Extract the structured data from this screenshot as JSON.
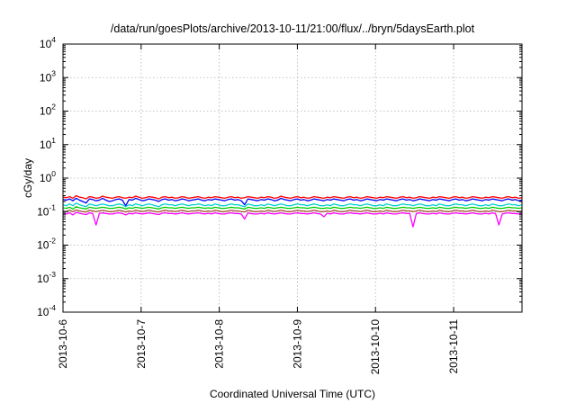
{
  "chart_data": {
    "type": "line",
    "title": "/data/run/goesPlots/archive/2013-10-11/21:00/flux/../bryn/5daysEarth.plot",
    "xlabel": "Coordinated Universal Time (UTC)",
    "ylabel": "cGy/day",
    "yscale": "log",
    "ylim": [
      0.0001,
      10000
    ],
    "y_ticks": [
      {
        "base": "10",
        "exp": "-4"
      },
      {
        "base": "10",
        "exp": "-3"
      },
      {
        "base": "10",
        "exp": "-2"
      },
      {
        "base": "10",
        "exp": "-1"
      },
      {
        "base": "10",
        "exp": "0"
      },
      {
        "base": "10",
        "exp": "1"
      },
      {
        "base": "10",
        "exp": "2"
      },
      {
        "base": "10",
        "exp": "3"
      },
      {
        "base": "10",
        "exp": "4"
      }
    ],
    "xlim": [
      "2013-10-06",
      "2013-10-11T21:00"
    ],
    "x_ticks": [
      "2013-10-6",
      "2013-10-7",
      "2013-10-8",
      "2013-10-9",
      "2013-10-10",
      "2013-10-11"
    ],
    "grid": true,
    "series": [
      {
        "color": "#ff0000",
        "base": 0.26,
        "values": [
          0.27,
          0.26,
          0.28,
          0.25,
          0.3,
          0.27,
          0.26,
          0.24,
          0.28,
          0.27,
          0.25,
          0.26,
          0.29,
          0.27,
          0.26,
          0.25,
          0.27,
          0.28,
          0.26,
          0.25,
          0.27,
          0.26,
          0.29,
          0.27,
          0.25,
          0.26,
          0.28,
          0.27,
          0.26,
          0.24,
          0.27,
          0.28,
          0.26,
          0.27,
          0.25,
          0.26,
          0.28,
          0.27,
          0.25,
          0.26,
          0.27,
          0.28,
          0.26,
          0.25,
          0.27,
          0.26,
          0.28,
          0.27,
          0.26,
          0.25,
          0.27,
          0.28,
          0.26,
          0.27,
          0.25,
          0.26,
          0.28,
          0.27,
          0.26,
          0.25,
          0.27,
          0.26,
          0.28,
          0.27,
          0.25,
          0.26,
          0.29,
          0.27,
          0.26,
          0.25,
          0.27,
          0.28,
          0.26,
          0.27,
          0.25,
          0.26,
          0.28,
          0.27,
          0.26,
          0.25,
          0.27,
          0.26,
          0.28,
          0.27,
          0.26,
          0.25,
          0.27,
          0.28,
          0.26,
          0.27,
          0.25,
          0.26,
          0.28,
          0.27,
          0.26,
          0.25,
          0.27,
          0.26,
          0.28,
          0.27,
          0.26,
          0.25,
          0.27,
          0.28,
          0.26,
          0.27,
          0.25,
          0.26,
          0.28,
          0.27,
          0.26,
          0.25,
          0.27,
          0.26,
          0.28,
          0.27,
          0.26,
          0.25,
          0.27,
          0.28,
          0.26,
          0.27,
          0.25,
          0.26,
          0.28,
          0.27,
          0.26,
          0.25,
          0.27,
          0.26,
          0.28,
          0.27,
          0.26,
          0.25,
          0.27,
          0.28,
          0.26,
          0.27,
          0.25,
          0.26
        ]
      },
      {
        "color": "#0000ff",
        "base": 0.22,
        "values": [
          0.23,
          0.22,
          0.24,
          0.21,
          0.25,
          0.22,
          0.2,
          0.18,
          0.24,
          0.23,
          0.21,
          0.22,
          0.25,
          0.22,
          0.2,
          0.21,
          0.23,
          0.24,
          0.22,
          0.15,
          0.23,
          0.22,
          0.25,
          0.23,
          0.21,
          0.22,
          0.24,
          0.23,
          0.22,
          0.2,
          0.23,
          0.24,
          0.22,
          0.23,
          0.21,
          0.22,
          0.24,
          0.23,
          0.21,
          0.22,
          0.23,
          0.24,
          0.22,
          0.21,
          0.23,
          0.22,
          0.24,
          0.23,
          0.22,
          0.21,
          0.23,
          0.24,
          0.22,
          0.23,
          0.21,
          0.16,
          0.24,
          0.23,
          0.22,
          0.21,
          0.23,
          0.22,
          0.24,
          0.23,
          0.21,
          0.22,
          0.25,
          0.23,
          0.22,
          0.21,
          0.23,
          0.24,
          0.22,
          0.23,
          0.21,
          0.22,
          0.24,
          0.23,
          0.22,
          0.21,
          0.23,
          0.22,
          0.24,
          0.23,
          0.22,
          0.21,
          0.23,
          0.24,
          0.22,
          0.23,
          0.21,
          0.22,
          0.24,
          0.23,
          0.22,
          0.21,
          0.23,
          0.22,
          0.24,
          0.23,
          0.22,
          0.21,
          0.23,
          0.24,
          0.22,
          0.23,
          0.21,
          0.22,
          0.24,
          0.23,
          0.22,
          0.21,
          0.23,
          0.22,
          0.24,
          0.23,
          0.22,
          0.21,
          0.23,
          0.24,
          0.22,
          0.23,
          0.21,
          0.22,
          0.24,
          0.23,
          0.22,
          0.21,
          0.23,
          0.22,
          0.24,
          0.23,
          0.22,
          0.21,
          0.23,
          0.24,
          0.22,
          0.23,
          0.21,
          0.22
        ]
      },
      {
        "color": "#00d0d0",
        "base": 0.16,
        "values": [
          0.16,
          0.15,
          0.17,
          0.15,
          0.18,
          0.16,
          0.15,
          0.14,
          0.17,
          0.16,
          0.15,
          0.16,
          0.17,
          0.16,
          0.15,
          0.15,
          0.16,
          0.17,
          0.16,
          0.14,
          0.16,
          0.15,
          0.17,
          0.16,
          0.15,
          0.16,
          0.17,
          0.16,
          0.15,
          0.14,
          0.16,
          0.17,
          0.16,
          0.16,
          0.15,
          0.16,
          0.17,
          0.16,
          0.15,
          0.16,
          0.16,
          0.17,
          0.16,
          0.15,
          0.16,
          0.15,
          0.17,
          0.16,
          0.15,
          0.15,
          0.16,
          0.17,
          0.16,
          0.16,
          0.15,
          0.14,
          0.17,
          0.16,
          0.15,
          0.15,
          0.16,
          0.15,
          0.17,
          0.16,
          0.15,
          0.16,
          0.17,
          0.16,
          0.15,
          0.15,
          0.16,
          0.17,
          0.16,
          0.16,
          0.15,
          0.16,
          0.17,
          0.16,
          0.15,
          0.15,
          0.16,
          0.15,
          0.17,
          0.16,
          0.15,
          0.15,
          0.16,
          0.17,
          0.16,
          0.16,
          0.15,
          0.16,
          0.17,
          0.16,
          0.15,
          0.15,
          0.16,
          0.15,
          0.17,
          0.16,
          0.15,
          0.15,
          0.16,
          0.17,
          0.16,
          0.16,
          0.15,
          0.16,
          0.17,
          0.16,
          0.15,
          0.15,
          0.16,
          0.15,
          0.17,
          0.16,
          0.15,
          0.15,
          0.16,
          0.17,
          0.16,
          0.16,
          0.15,
          0.16,
          0.17,
          0.16,
          0.15,
          0.15,
          0.16,
          0.15,
          0.17,
          0.16,
          0.15,
          0.15,
          0.16,
          0.17,
          0.16,
          0.16,
          0.15,
          0.16
        ]
      },
      {
        "color": "#00cc00",
        "base": 0.13,
        "values": [
          0.13,
          0.125,
          0.135,
          0.12,
          0.14,
          0.13,
          0.125,
          0.12,
          0.135,
          0.13,
          0.125,
          0.13,
          0.135,
          0.13,
          0.125,
          0.125,
          0.13,
          0.135,
          0.13,
          0.12,
          0.13,
          0.125,
          0.135,
          0.13,
          0.125,
          0.13,
          0.135,
          0.13,
          0.125,
          0.12,
          0.13,
          0.135,
          0.13,
          0.13,
          0.125,
          0.13,
          0.135,
          0.13,
          0.125,
          0.13,
          0.13,
          0.135,
          0.13,
          0.125,
          0.13,
          0.125,
          0.135,
          0.13,
          0.125,
          0.125,
          0.13,
          0.135,
          0.13,
          0.13,
          0.125,
          0.12,
          0.135,
          0.13,
          0.125,
          0.125,
          0.13,
          0.125,
          0.135,
          0.13,
          0.125,
          0.13,
          0.135,
          0.13,
          0.125,
          0.125,
          0.13,
          0.135,
          0.13,
          0.13,
          0.125,
          0.13,
          0.135,
          0.13,
          0.125,
          0.125,
          0.13,
          0.125,
          0.135,
          0.13,
          0.125,
          0.125,
          0.13,
          0.135,
          0.13,
          0.13,
          0.125,
          0.13,
          0.135,
          0.13,
          0.125,
          0.125,
          0.13,
          0.125,
          0.135,
          0.13,
          0.125,
          0.125,
          0.13,
          0.135,
          0.13,
          0.13,
          0.125,
          0.13,
          0.135,
          0.13,
          0.125,
          0.125,
          0.13,
          0.125,
          0.135,
          0.13,
          0.125,
          0.125,
          0.13,
          0.135,
          0.13,
          0.13,
          0.125,
          0.13,
          0.135,
          0.13,
          0.125,
          0.125,
          0.13,
          0.125,
          0.135,
          0.13,
          0.125,
          0.125,
          0.13,
          0.135,
          0.13,
          0.13,
          0.125,
          0.13
        ]
      },
      {
        "color": "#a0522d",
        "base": 0.105,
        "values": [
          0.105,
          0.1,
          0.11,
          0.1,
          0.112,
          0.105,
          0.1,
          0.098,
          0.11,
          0.105,
          0.1,
          0.105,
          0.11,
          0.105,
          0.1,
          0.1,
          0.105,
          0.11,
          0.105,
          0.098,
          0.105,
          0.1,
          0.11,
          0.105,
          0.1,
          0.105,
          0.11,
          0.105,
          0.1,
          0.098,
          0.105,
          0.11,
          0.105,
          0.105,
          0.1,
          0.105,
          0.11,
          0.105,
          0.1,
          0.105,
          0.105,
          0.11,
          0.105,
          0.1,
          0.105,
          0.1,
          0.11,
          0.105,
          0.1,
          0.1,
          0.105,
          0.11,
          0.105,
          0.105,
          0.1,
          0.098,
          0.11,
          0.105,
          0.1,
          0.1,
          0.105,
          0.1,
          0.11,
          0.105,
          0.1,
          0.105,
          0.11,
          0.105,
          0.1,
          0.1,
          0.105,
          0.11,
          0.105,
          0.105,
          0.1,
          0.105,
          0.11,
          0.105,
          0.1,
          0.1,
          0.105,
          0.1,
          0.11,
          0.105,
          0.1,
          0.1,
          0.105,
          0.11,
          0.105,
          0.105,
          0.1,
          0.105,
          0.11,
          0.105,
          0.1,
          0.1,
          0.105,
          0.1,
          0.11,
          0.105,
          0.1,
          0.1,
          0.105,
          0.11,
          0.105,
          0.105,
          0.1,
          0.105,
          0.11,
          0.105,
          0.1,
          0.1,
          0.105,
          0.1,
          0.11,
          0.105,
          0.1,
          0.1,
          0.105,
          0.11,
          0.105,
          0.105,
          0.1,
          0.105,
          0.11,
          0.105,
          0.1,
          0.1,
          0.105,
          0.1,
          0.11,
          0.105,
          0.1,
          0.1,
          0.105,
          0.11,
          0.105,
          0.105,
          0.1,
          0.105
        ]
      },
      {
        "color": "#ff00ff",
        "base": 0.088,
        "values": [
          0.09,
          0.085,
          0.092,
          0.08,
          0.095,
          0.09,
          0.085,
          0.082,
          0.092,
          0.088,
          0.04,
          0.088,
          0.092,
          0.088,
          0.085,
          0.085,
          0.09,
          0.092,
          0.088,
          0.08,
          0.09,
          0.085,
          0.092,
          0.088,
          0.085,
          0.088,
          0.092,
          0.088,
          0.085,
          0.082,
          0.09,
          0.092,
          0.088,
          0.088,
          0.085,
          0.088,
          0.092,
          0.088,
          0.085,
          0.088,
          0.09,
          0.092,
          0.088,
          0.085,
          0.09,
          0.085,
          0.092,
          0.088,
          0.085,
          0.085,
          0.09,
          0.092,
          0.088,
          0.088,
          0.085,
          0.06,
          0.092,
          0.088,
          0.085,
          0.085,
          0.09,
          0.085,
          0.092,
          0.088,
          0.085,
          0.088,
          0.092,
          0.088,
          0.085,
          0.085,
          0.09,
          0.092,
          0.088,
          0.088,
          0.085,
          0.088,
          0.092,
          0.088,
          0.085,
          0.07,
          0.09,
          0.085,
          0.092,
          0.088,
          0.085,
          0.085,
          0.09,
          0.092,
          0.088,
          0.088,
          0.085,
          0.088,
          0.092,
          0.088,
          0.085,
          0.085,
          0.09,
          0.085,
          0.092,
          0.088,
          0.085,
          0.085,
          0.09,
          0.092,
          0.088,
          0.088,
          0.035,
          0.088,
          0.092,
          0.088,
          0.085,
          0.085,
          0.09,
          0.085,
          0.092,
          0.088,
          0.085,
          0.085,
          0.09,
          0.092,
          0.088,
          0.088,
          0.085,
          0.088,
          0.092,
          0.088,
          0.085,
          0.085,
          0.09,
          0.085,
          0.092,
          0.088,
          0.04,
          0.085,
          0.09,
          0.092,
          0.088,
          0.088,
          0.085,
          0.088
        ]
      }
    ]
  }
}
